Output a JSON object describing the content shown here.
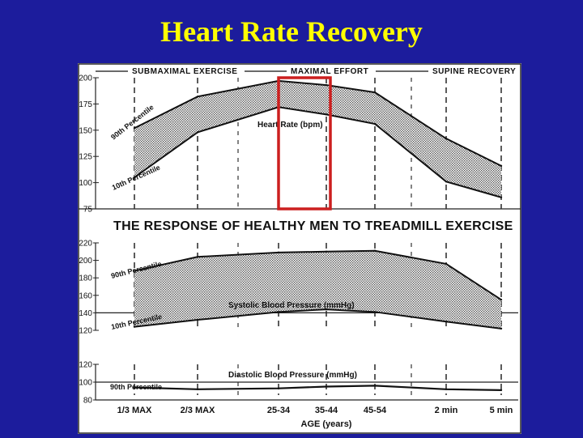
{
  "slide": {
    "title": "Heart Rate Recovery",
    "title_color": "#ffff00",
    "background_color": "#1c1c9c",
    "highlight_color": "#cc1f1f"
  },
  "figure": {
    "title": "THE RESPONSE OF HEALTHY MEN TO TREADMILL EXERCISE",
    "phase_labels": [
      "SUBMAXIMAL EXERCISE",
      "MAXIMAL EFFORT",
      "SUPINE RECOVERY"
    ],
    "x_label": "AGE (years)"
  },
  "chart_data": [
    {
      "type": "area",
      "title": "Heart Rate (bpm)",
      "categories": [
        "1/3 MAX",
        "2/3 MAX",
        "25-34",
        "35-44",
        "45-54",
        "2 min",
        "5 min"
      ],
      "ylim": [
        75,
        200
      ],
      "yticks": [
        200,
        175,
        150,
        125,
        100,
        75
      ],
      "series": [
        {
          "name": "90th Percentile",
          "values": [
            152,
            182,
            197,
            193,
            186,
            142,
            116
          ]
        },
        {
          "name": "10th Percentile",
          "values": [
            105,
            148,
            172,
            165,
            156,
            101,
            86
          ]
        }
      ],
      "highlight": "maximal effort 25-34 column",
      "grid": "dashed vertical lines"
    },
    {
      "type": "area",
      "title": "Systolic Blood Pressure (mmHg)",
      "categories": [
        "1/3 MAX",
        "2/3 MAX",
        "25-34",
        "35-44",
        "45-54",
        "2 min",
        "5 min"
      ],
      "ylim": [
        120,
        220
      ],
      "yticks": [
        220,
        200,
        180,
        160,
        140,
        120
      ],
      "series": [
        {
          "name": "90th Percentile",
          "values": [
            188,
            204,
            209,
            210,
            211,
            196,
            155
          ]
        },
        {
          "name": "10th Percentile",
          "values": [
            124,
            132,
            141,
            144,
            141,
            130,
            122
          ]
        }
      ],
      "grid": "dashed vertical lines"
    },
    {
      "type": "line",
      "title": "Diastolic Blood Pressure (mmHg)",
      "categories": [
        "1/3 MAX",
        "2/3 MAX",
        "25-34",
        "35-44",
        "45-54",
        "2 min",
        "5 min"
      ],
      "ylim": [
        80,
        120
      ],
      "yticks": [
        120,
        100,
        80
      ],
      "series": [
        {
          "name": "90th Percentile",
          "values": [
            94,
            92,
            93,
            95,
            96,
            92,
            91
          ]
        }
      ],
      "grid": "dashed vertical lines"
    }
  ]
}
